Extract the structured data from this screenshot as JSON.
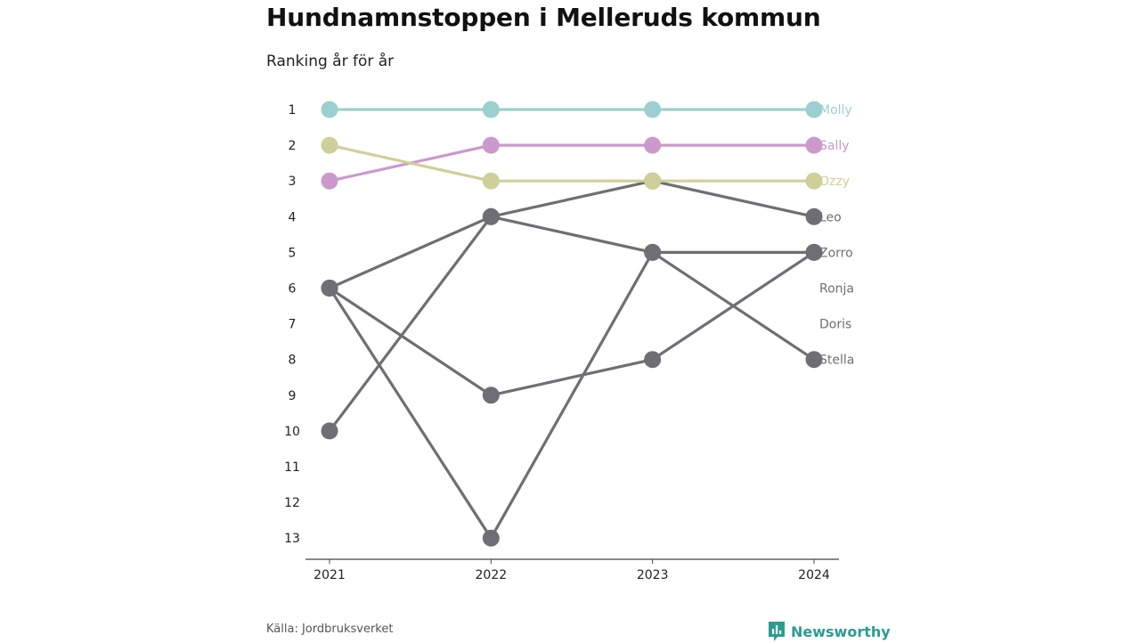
{
  "title": "Hundnamnstoppen i Melleruds kommun",
  "subtitle": "Ranking år för år",
  "source": "Källa: Jordbruksverket",
  "brand": "Newsworthy",
  "colors": {
    "molly": "#9ccfcf",
    "sally": "#cc99cc",
    "ozzy": "#cfcf99",
    "other": "#6f6e74",
    "brand": "#2a9d8f"
  },
  "chart_data": {
    "type": "line",
    "subtype": "bump",
    "x": [
      "2021",
      "2022",
      "2023",
      "2024"
    ],
    "y_ticks": [
      "1",
      "2",
      "3",
      "4",
      "5",
      "6",
      "7",
      "8",
      "9",
      "10",
      "11",
      "12",
      "13"
    ],
    "ylim": [
      1,
      13
    ],
    "y_reversed": true,
    "grid": false,
    "legend": "end-of-line labels",
    "series": [
      {
        "name": "Molly",
        "color": "#9ccfcf",
        "values": [
          1,
          1,
          1,
          1
        ]
      },
      {
        "name": "Sally",
        "color": "#cc99cc",
        "values": [
          3,
          2,
          2,
          2
        ]
      },
      {
        "name": "Ozzy",
        "color": "#cfcf99",
        "values": [
          2,
          3,
          3,
          3
        ]
      },
      {
        "name": "Leo",
        "color": "#6f6e74",
        "values": [
          10,
          4,
          3,
          4
        ]
      },
      {
        "name": "Zorro",
        "color": "#6f6e74",
        "values": [
          6,
          4,
          5,
          5
        ]
      },
      {
        "name": "Ronja",
        "color": "#6f6e74",
        "values": [
          null,
          null,
          null,
          null
        ]
      },
      {
        "name": "Doris",
        "color": "#6f6e74",
        "values": [
          null,
          null,
          null,
          null
        ]
      },
      {
        "name": "Stella",
        "color": "#6f6e74",
        "values": [
          6,
          13,
          5,
          8
        ]
      },
      {
        "name": "",
        "color": "#6f6e74",
        "values": [
          6,
          9,
          8,
          5
        ]
      }
    ]
  }
}
